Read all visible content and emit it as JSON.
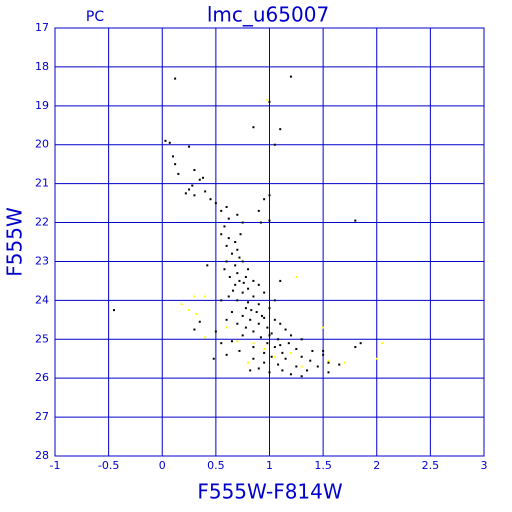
{
  "chart_data": {
    "type": "scatter",
    "title": "lmc_u65007",
    "subtitle": "PC",
    "x_label": "F555W-F814W",
    "y_label": "F555W",
    "xlim": [
      -1,
      3
    ],
    "ylim": [
      28,
      17
    ],
    "xticks": [
      -1,
      -0.5,
      0,
      0.5,
      1,
      1.5,
      2,
      2.5,
      3
    ],
    "yticks": [
      17,
      18,
      19,
      20,
      21,
      22,
      23,
      24,
      25,
      26,
      27,
      28
    ],
    "grid": true,
    "grid_color": "#0000cc",
    "series": [
      {
        "color": "#000000",
        "x": [
          0.12,
          1.2,
          1.0,
          0.85,
          1.1,
          1.05,
          0.03,
          0.07,
          0.25,
          0.1,
          0.12,
          0.15,
          0.3,
          0.38,
          0.35,
          0.28,
          0.25,
          0.22,
          0.3,
          0.4,
          0.45,
          0.5,
          0.55,
          0.6,
          0.62,
          0.7,
          0.75,
          0.95,
          0.9,
          1.0,
          0.92,
          1.0,
          1.8,
          -0.45,
          0.55,
          0.62,
          0.68,
          0.6,
          0.7,
          0.65,
          0.72,
          0.6,
          0.75,
          0.68,
          0.8,
          0.7,
          0.63,
          0.78,
          0.72,
          0.85,
          0.68,
          0.8,
          0.9,
          0.75,
          0.62,
          0.85,
          0.95,
          0.7,
          0.8,
          0.9,
          0.78,
          1.0,
          0.65,
          0.88,
          0.75,
          0.95,
          0.82,
          1.05,
          0.7,
          0.9,
          1.1,
          0.78,
          0.98,
          1.15,
          0.85,
          1.02,
          1.2,
          0.75,
          0.92,
          1.08,
          1.3,
          0.65,
          0.98,
          1.18,
          0.85,
          1.05,
          1.25,
          1.4,
          0.72,
          0.95,
          1.12,
          0.6,
          1.02,
          1.3,
          1.5,
          0.85,
          1.15,
          1.38,
          1.55,
          0.95,
          1.08,
          1.25,
          1.45,
          1.65,
          0.9,
          1.12,
          1.35,
          1.55,
          1.0,
          1.2,
          1.3,
          1.5,
          1.8,
          1.85,
          0.35,
          0.3,
          0.55,
          0.48,
          0.82,
          0.58,
          0.42,
          1.1,
          1.05,
          0.55,
          0.6,
          0.5,
          0.66,
          0.73,
          0.58,
          0.76,
          0.83,
          0.93,
          1.0,
          1.1
        ],
        "values": [
          18.3,
          18.25,
          18.9,
          19.55,
          19.6,
          20.0,
          19.9,
          19.95,
          20.05,
          20.3,
          20.5,
          20.75,
          20.65,
          20.85,
          20.9,
          21.05,
          21.15,
          21.25,
          21.3,
          21.2,
          21.4,
          21.5,
          21.7,
          21.6,
          21.9,
          21.8,
          22.0,
          21.4,
          21.7,
          21.3,
          22.0,
          21.95,
          21.95,
          24.25,
          22.3,
          22.4,
          22.5,
          22.6,
          22.7,
          22.8,
          22.9,
          23.0,
          23.0,
          23.1,
          23.2,
          23.3,
          23.4,
          23.4,
          23.5,
          23.5,
          23.6,
          23.7,
          23.6,
          23.8,
          23.9,
          23.9,
          23.8,
          24.0,
          24.05,
          24.1,
          24.2,
          24.2,
          24.3,
          24.3,
          24.4,
          24.45,
          24.5,
          24.5,
          24.6,
          24.6,
          24.6,
          24.7,
          24.7,
          24.75,
          24.8,
          24.85,
          24.9,
          24.9,
          24.95,
          25.0,
          25.0,
          25.05,
          25.1,
          25.1,
          25.2,
          25.2,
          25.25,
          25.3,
          25.3,
          25.35,
          25.35,
          25.4,
          25.45,
          25.45,
          25.4,
          25.5,
          25.5,
          25.55,
          25.6,
          25.6,
          25.65,
          25.7,
          25.7,
          25.65,
          25.75,
          25.8,
          25.8,
          25.85,
          25.85,
          25.9,
          25.95,
          25.3,
          25.2,
          25.1,
          24.55,
          24.75,
          25.1,
          25.5,
          25.8,
          23.2,
          23.1,
          23.5,
          24.0,
          24.0,
          24.5,
          24.8,
          23.75,
          22.3,
          22.1,
          23.55,
          24.25,
          24.4,
          24.9,
          25.15
        ]
      },
      {
        "color": "#ffff00",
        "x": [
          0.98,
          0.18,
          0.3,
          0.4,
          0.25,
          0.32,
          0.4,
          0.6,
          0.7,
          0.85,
          0.95,
          1.05,
          1.2,
          1.5,
          1.55,
          1.7,
          2.0,
          2.05,
          1.25,
          0.8,
          1.3
        ],
        "values": [
          18.85,
          24.1,
          23.9,
          23.9,
          24.25,
          24.35,
          24.95,
          24.7,
          25.05,
          25.1,
          25.25,
          25.45,
          25.35,
          24.7,
          25.55,
          25.6,
          25.5,
          25.1,
          23.4,
          25.6,
          25.7
        ]
      }
    ]
  }
}
